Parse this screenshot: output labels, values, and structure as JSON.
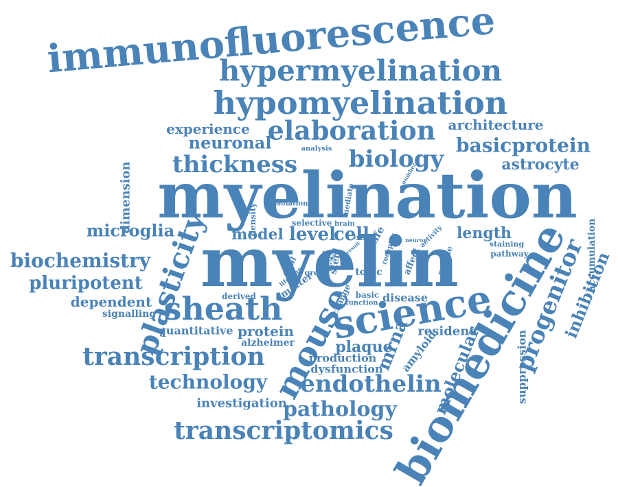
{
  "word_cloud": {
    "color": "#4a83b7",
    "words": [
      "immunofluorescence",
      "hypermyelination",
      "hypomyelination",
      "myelination",
      "myelin",
      "biomedicine",
      "science",
      "mouse",
      "sheath",
      "elaboration",
      "biology",
      "thickness",
      "experience",
      "neuronal",
      "architecture",
      "basicprotein",
      "astrocyte",
      "microglia",
      "biochemistry",
      "pluripotent",
      "dependent",
      "signalling",
      "plasticity",
      "model",
      "level",
      "cell",
      "length",
      "progenitor",
      "inhibition",
      "accumulation",
      "staining",
      "pathway",
      "transcription",
      "technology",
      "transcriptomics",
      "endothelin",
      "pathology",
      "mrna",
      "molecular",
      "suppression",
      "investigation",
      "quantitative",
      "protein",
      "alzheimer",
      "plaque",
      "production",
      "dysfunction",
      "amyloid",
      "resident",
      "disease",
      "dimension",
      "density",
      "isolation",
      "analysis",
      "mediate",
      "number",
      "selective",
      "brain",
      "life",
      "neuron",
      "activity",
      "receptor",
      "affect",
      "rescue",
      "topic",
      "basic",
      "function",
      "change",
      "matter",
      "grey",
      "glial",
      "lifespan",
      "stem",
      "derived",
      "role",
      "result",
      "source",
      "world",
      "lead"
    ]
  }
}
